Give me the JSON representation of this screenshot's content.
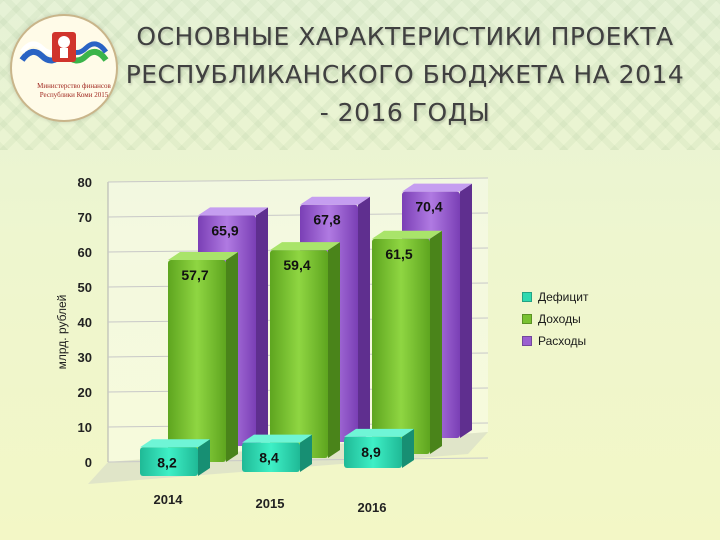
{
  "header": {
    "title": "ОСНОВНЫЕ ХАРАКТЕРИСТИКИ ПРОЕКТА РЕСПУБЛИКАНСКОГО БЮДЖЕТА НА 2014 - 2016 ГОДЫ",
    "logo_text": "Министерство финансов Республики Коми 2015"
  },
  "chart_data": {
    "type": "bar",
    "ylabel": "млрд. рублей",
    "ylim": [
      0,
      80
    ],
    "yticks": [
      0,
      10,
      20,
      30,
      40,
      50,
      60,
      70,
      80
    ],
    "categories": [
      "2014",
      "2015",
      "2016"
    ],
    "series": [
      {
        "name": "Дефицит",
        "values": [
          8.2,
          8.4,
          8.9
        ],
        "labels": [
          "8,2",
          "8,4",
          "8,9"
        ],
        "color": "#2fd9b0"
      },
      {
        "name": "Доходы",
        "values": [
          57.7,
          59.4,
          61.5
        ],
        "labels": [
          "57,7",
          "59,4",
          "61,5"
        ],
        "color": "#79c231"
      },
      {
        "name": "Расходы",
        "values": [
          65.9,
          67.8,
          70.4
        ],
        "labels": [
          "65,9",
          "67,8",
          "70,4"
        ],
        "color": "#9a5fd0"
      }
    ],
    "legend_position": "right",
    "grid": true
  }
}
